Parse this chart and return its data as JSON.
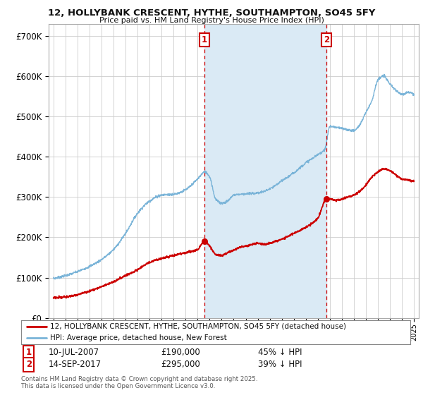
{
  "title1": "12, HOLLYBANK CRESCENT, HYTHE, SOUTHAMPTON, SO45 5FY",
  "title2": "Price paid vs. HM Land Registry's House Price Index (HPI)",
  "ylabel_ticks": [
    "£0",
    "£100K",
    "£200K",
    "£300K",
    "£400K",
    "£500K",
    "£600K",
    "£700K"
  ],
  "ytick_vals": [
    0,
    100000,
    200000,
    300000,
    400000,
    500000,
    600000,
    700000
  ],
  "ylim": [
    0,
    730000
  ],
  "xlim_start": 1994.6,
  "xlim_end": 2025.4,
  "background_color": "#ffffff",
  "grid_color": "#cccccc",
  "hpi_color": "#7ab4d8",
  "hpi_fill_color": "#daeaf5",
  "price_color": "#cc0000",
  "vline_color": "#cc0000",
  "annotation_color": "#cc0000",
  "purchase1_x": 2007.54,
  "purchase1_y": 190000,
  "purchase1_label": "1",
  "purchase1_date": "10-JUL-2007",
  "purchase1_price": "£190,000",
  "purchase1_hpi": "45% ↓ HPI",
  "purchase2_x": 2017.71,
  "purchase2_y": 295000,
  "purchase2_label": "2",
  "purchase2_date": "14-SEP-2017",
  "purchase2_price": "£295,000",
  "purchase2_hpi": "39% ↓ HPI",
  "legend_line1": "12, HOLLYBANK CRESCENT, HYTHE, SOUTHAMPTON, SO45 5FY (detached house)",
  "legend_line2": "HPI: Average price, detached house, New Forest",
  "footer1": "Contains HM Land Registry data © Crown copyright and database right 2025.",
  "footer2": "This data is licensed under the Open Government Licence v3.0."
}
